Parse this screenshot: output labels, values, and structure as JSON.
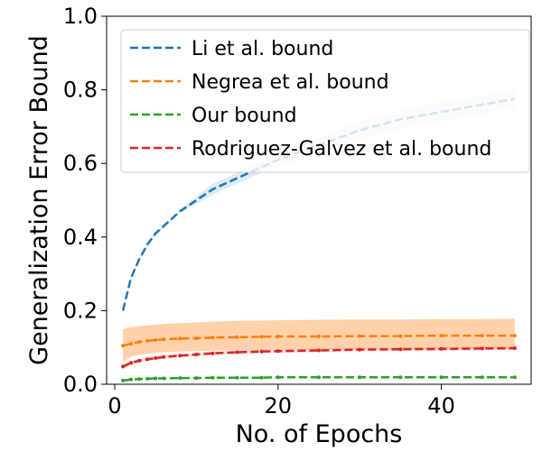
{
  "chart_data": {
    "type": "line",
    "xlabel": "No. of Epochs",
    "ylabel": "Generalization Error Bound",
    "xlim": [
      -1,
      51
    ],
    "ylim": [
      0,
      1.0
    ],
    "xticks": [
      0,
      20,
      40
    ],
    "yticks": [
      0.0,
      0.2,
      0.4,
      0.6,
      0.8,
      1.0
    ],
    "x_tick_labels": [
      "0",
      "20",
      "40"
    ],
    "y_tick_labels": [
      "0.0",
      "0.2",
      "0.4",
      "0.6",
      "0.8",
      "1.0"
    ],
    "grid": false,
    "legend_position": "top-right",
    "x": [
      1,
      2,
      3,
      4,
      5,
      6,
      8,
      10,
      12,
      15,
      18,
      20,
      25,
      30,
      35,
      40,
      45,
      49
    ],
    "series": [
      {
        "name": "Li et al. bound",
        "color": "#1f77b4",
        "values": [
          0.2,
          0.29,
          0.34,
          0.38,
          0.41,
          0.43,
          0.47,
          0.5,
          0.53,
          0.56,
          0.59,
          0.61,
          0.65,
          0.69,
          0.72,
          0.74,
          0.76,
          0.775
        ],
        "band_lower": [
          0.195,
          0.285,
          0.335,
          0.375,
          0.405,
          0.425,
          0.465,
          0.49,
          0.515,
          0.545,
          0.575,
          0.59,
          0.63,
          0.665,
          0.695,
          0.715,
          0.735,
          0.75
        ],
        "band_upper": [
          0.205,
          0.295,
          0.345,
          0.385,
          0.415,
          0.435,
          0.475,
          0.51,
          0.545,
          0.575,
          0.605,
          0.63,
          0.67,
          0.715,
          0.745,
          0.765,
          0.785,
          0.8
        ]
      },
      {
        "name": "Negrea et al. bound",
        "color": "#ff7f0e",
        "values": [
          0.105,
          0.11,
          0.115,
          0.118,
          0.12,
          0.122,
          0.124,
          0.125,
          0.127,
          0.128,
          0.129,
          0.13,
          0.13,
          0.131,
          0.131,
          0.132,
          0.132,
          0.132
        ],
        "band_lower": [
          0.06,
          0.075,
          0.08,
          0.083,
          0.085,
          0.087,
          0.089,
          0.09,
          0.091,
          0.092,
          0.093,
          0.094,
          0.094,
          0.095,
          0.095,
          0.095,
          0.096,
          0.096
        ],
        "band_upper": [
          0.15,
          0.155,
          0.158,
          0.16,
          0.162,
          0.164,
          0.166,
          0.168,
          0.17,
          0.172,
          0.173,
          0.174,
          0.175,
          0.176,
          0.176,
          0.177,
          0.177,
          0.178
        ]
      },
      {
        "name": "Our bound",
        "color": "#2ca02c",
        "values": [
          0.01,
          0.013,
          0.014,
          0.015,
          0.016,
          0.016,
          0.017,
          0.017,
          0.018,
          0.018,
          0.018,
          0.019,
          0.019,
          0.019,
          0.019,
          0.019,
          0.019,
          0.019
        ],
        "band_lower": [
          0.008,
          0.011,
          0.012,
          0.013,
          0.014,
          0.014,
          0.015,
          0.015,
          0.016,
          0.016,
          0.016,
          0.017,
          0.017,
          0.017,
          0.017,
          0.017,
          0.017,
          0.017
        ],
        "band_upper": [
          0.012,
          0.015,
          0.016,
          0.017,
          0.018,
          0.018,
          0.019,
          0.019,
          0.02,
          0.02,
          0.02,
          0.021,
          0.021,
          0.021,
          0.021,
          0.021,
          0.021,
          0.021
        ]
      },
      {
        "name": "Rodriguez-Galvez et al. bound",
        "color": "#d62728",
        "values": [
          0.048,
          0.058,
          0.064,
          0.068,
          0.071,
          0.074,
          0.078,
          0.081,
          0.084,
          0.087,
          0.089,
          0.09,
          0.092,
          0.094,
          0.095,
          0.096,
          0.097,
          0.098
        ],
        "band_lower": [
          0.043,
          0.053,
          0.059,
          0.063,
          0.066,
          0.069,
          0.073,
          0.076,
          0.079,
          0.082,
          0.084,
          0.085,
          0.087,
          0.089,
          0.09,
          0.091,
          0.092,
          0.093
        ],
        "band_upper": [
          0.053,
          0.063,
          0.069,
          0.073,
          0.076,
          0.079,
          0.083,
          0.086,
          0.089,
          0.092,
          0.094,
          0.095,
          0.097,
          0.099,
          0.1,
          0.101,
          0.102,
          0.103
        ]
      }
    ]
  }
}
